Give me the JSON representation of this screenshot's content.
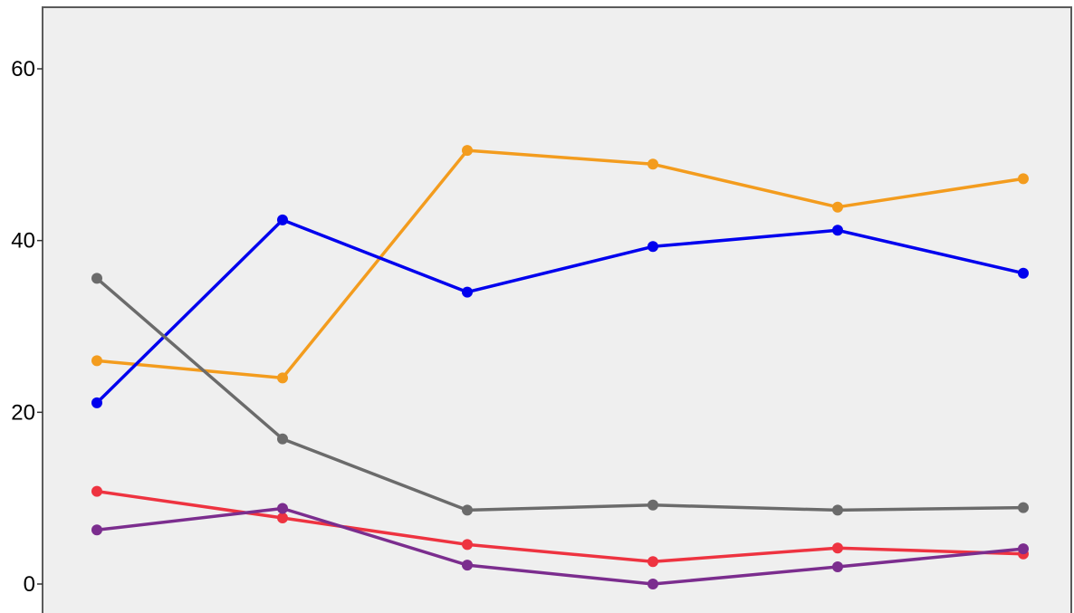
{
  "chart_data": {
    "type": "line",
    "title": "",
    "xlabel": "",
    "ylabel": "",
    "x": [
      1,
      2,
      3,
      4,
      5,
      6
    ],
    "ylim": [
      -3,
      67
    ],
    "yticks": [
      0,
      20,
      40,
      60
    ],
    "ytick_labels": [
      "0",
      "20",
      "40",
      "60"
    ],
    "grid": false,
    "background": "#efefef",
    "series": [
      {
        "color": "#f39c1e",
        "values": [
          26.0,
          24.0,
          50.5,
          48.9,
          43.9,
          47.2
        ]
      },
      {
        "color": "#0000ee",
        "values": [
          21.1,
          42.4,
          34.0,
          39.3,
          41.2,
          36.2
        ]
      },
      {
        "color": "#6b6b6b",
        "values": [
          35.6,
          16.9,
          8.6,
          9.2,
          8.6,
          8.9
        ]
      },
      {
        "color": "#ee3340",
        "values": [
          10.8,
          7.7,
          4.6,
          2.6,
          4.2,
          3.5
        ]
      },
      {
        "color": "#7b2d8e",
        "values": [
          6.3,
          8.8,
          2.2,
          0.0,
          2.0,
          4.1
        ]
      }
    ]
  }
}
